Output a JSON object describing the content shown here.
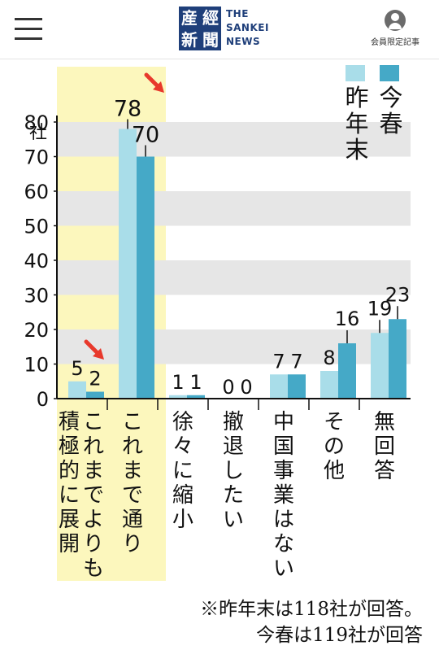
{
  "header": {
    "logo_mark": [
      "産",
      "經",
      "新",
      "聞"
    ],
    "logo_text": [
      "THE",
      "SANKEI",
      "NEWS"
    ],
    "member_label": "会員限定記事"
  },
  "chart_data": {
    "type": "bar",
    "categories": [
      "これまでよりも積極的に展開",
      "これまで通り",
      "徐々に縮小",
      "撤退したい",
      "中国事業はない",
      "その他",
      "無回答"
    ],
    "series": [
      {
        "name": "昨年末",
        "values": [
          5,
          78,
          1,
          0,
          7,
          8,
          19
        ],
        "color": "#a9dde9"
      },
      {
        "name": "今春",
        "values": [
          2,
          70,
          1,
          0,
          7,
          16,
          23
        ],
        "color": "#45a9c7"
      }
    ],
    "ylim": [
      0,
      80
    ],
    "yticks": [
      0,
      10,
      20,
      30,
      40,
      50,
      60,
      70,
      80
    ],
    "yunit": "社",
    "grid": "alternating bands",
    "legend": "top-right",
    "highlight": {
      "categories": [
        0,
        1
      ],
      "color": "#fcf7bd"
    },
    "arrows": "red arrows pointing at the 今春 bars of the first two categories",
    "note_lines": [
      "※昨年末は118社が回答。",
      "今春は119社が回答"
    ]
  }
}
